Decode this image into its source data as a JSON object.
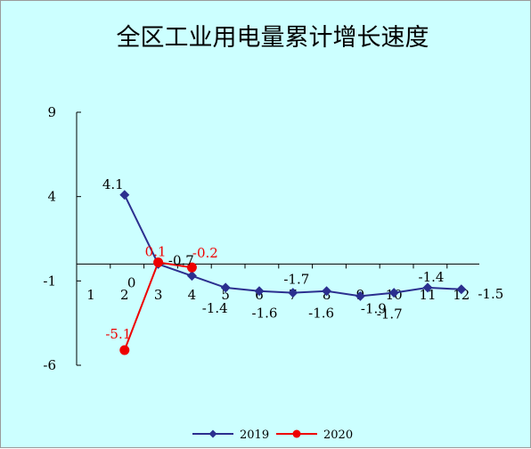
{
  "chart_data": {
    "type": "line",
    "title": "全区工业用电量累计增长速度",
    "xlabel": "",
    "ylabel": "",
    "categories": [
      "1",
      "2",
      "3",
      "4",
      "5",
      "6",
      "7",
      "8",
      "9",
      "10",
      "11",
      "12"
    ],
    "ylim": [
      -6,
      9
    ],
    "yticks": [
      "9",
      "4",
      "-1",
      "-6"
    ],
    "legend_position": "bottom",
    "grid": false,
    "series": [
      {
        "name": "2019",
        "color": "#2b2f8f",
        "marker": "diamond",
        "values": [
          null,
          4.1,
          0,
          -0.7,
          -1.4,
          -1.6,
          -1.7,
          -1.6,
          -1.9,
          -1.7,
          -1.4,
          -1.5
        ],
        "labels": [
          "",
          "4.1",
          "0",
          "-0.7",
          "-1.4",
          "-1.6",
          "-1.7",
          "-1.6",
          "-1.9",
          "-1.7",
          "-1.4",
          "-1.5"
        ]
      },
      {
        "name": "2020",
        "color": "#ee0000",
        "marker": "circle",
        "values": [
          null,
          -5.1,
          0.1,
          -0.2,
          null,
          null,
          null,
          null,
          null,
          null,
          null,
          null
        ],
        "labels": [
          "",
          "-5.1",
          "0.1",
          "-0.2",
          "",
          "",
          "",
          "",
          "",
          "",
          "",
          ""
        ]
      }
    ]
  }
}
